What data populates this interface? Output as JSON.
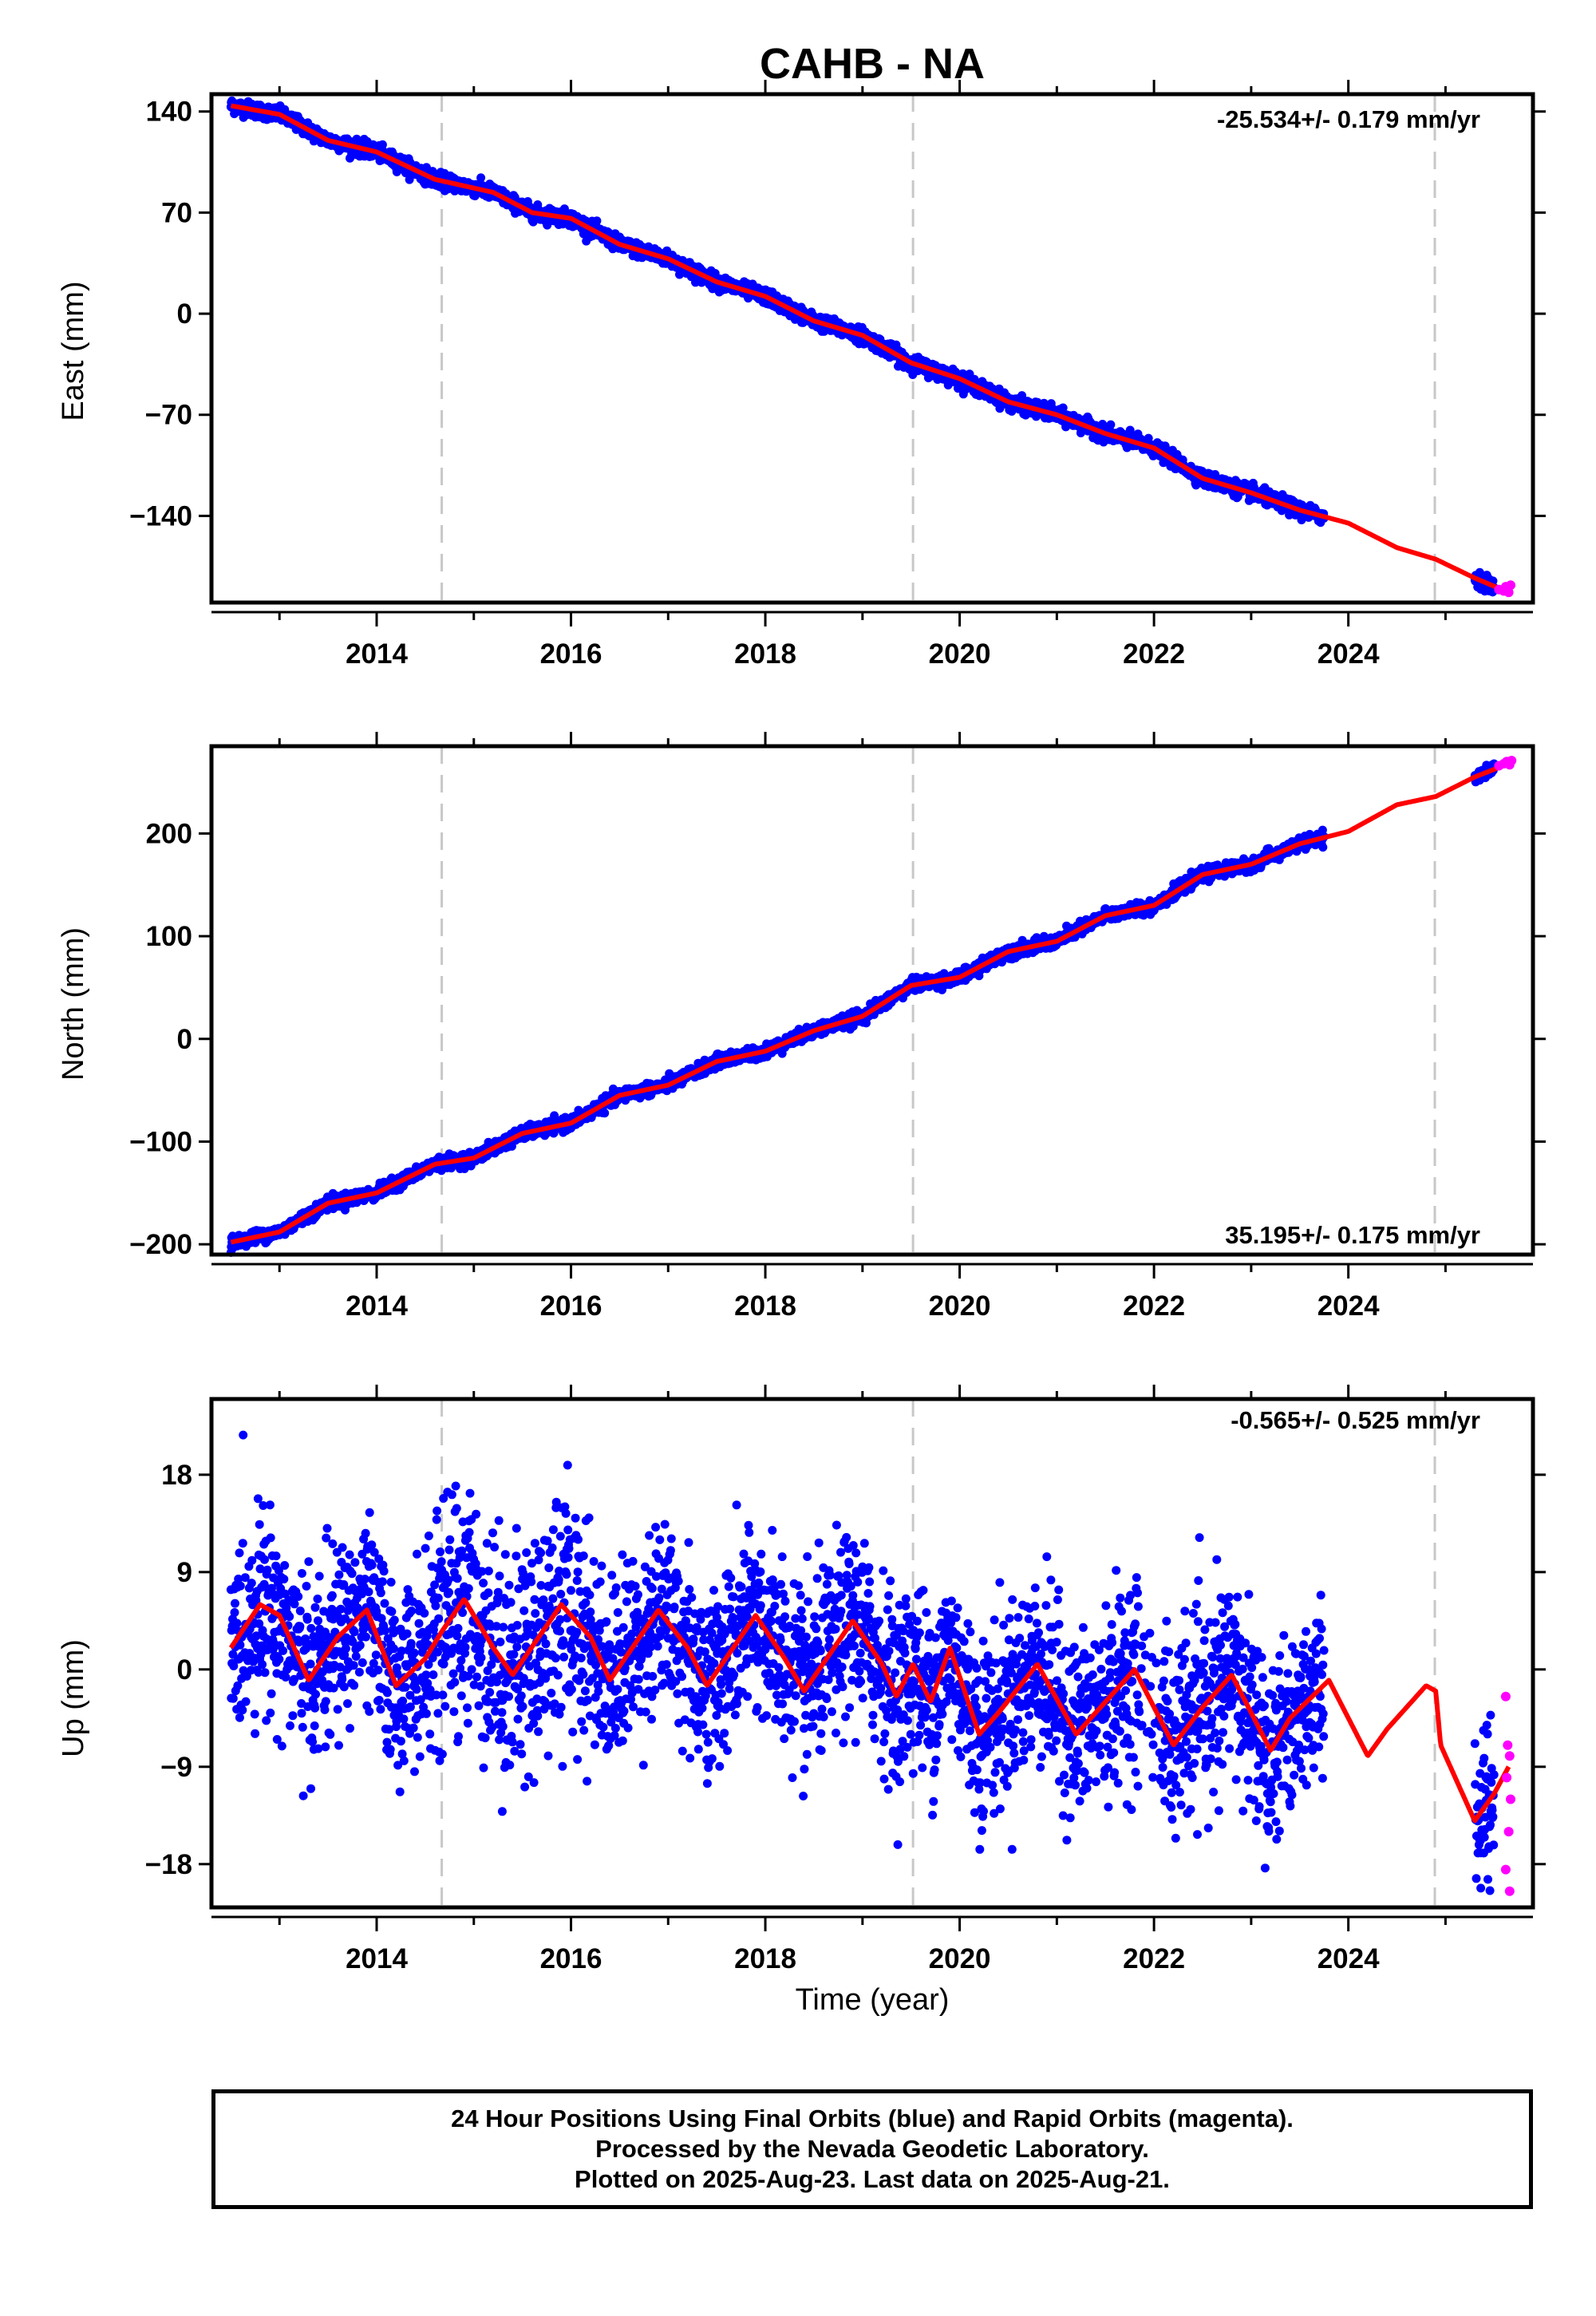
{
  "title": "CAHB - NA",
  "caption": {
    "line1": "24 Hour Positions Using Final Orbits (blue) and Rapid Orbits (magenta).",
    "line2": "Processed by the Nevada Geodetic Laboratory.",
    "line3": "Plotted on 2025-Aug-23. Last data on 2025-Aug-21."
  },
  "colors": {
    "final_orbits": "#0000ff",
    "rapid_orbits": "#ff00ff",
    "model": "#ff0000",
    "event_line": "#c8c8c8",
    "frame": "#000000"
  },
  "chart_data": [
    {
      "type": "scatter",
      "ylabel": "East (mm)",
      "xlabel": "",
      "rate": "-25.534+/- 0.179 mm/yr",
      "xlim": [
        2012.3,
        2025.9
      ],
      "ylim": [
        -200,
        152
      ],
      "yticks": [
        140,
        70,
        0,
        -70,
        -140
      ],
      "xticks": [
        2014,
        2016,
        2018,
        2020,
        2022,
        2024
      ],
      "event_lines": [
        2014.67,
        2019.52,
        2024.89
      ],
      "legend": "top-right",
      "trend": [
        [
          2012.5,
          144
        ],
        [
          2013,
          138
        ],
        [
          2013.5,
          120
        ],
        [
          2014,
          112
        ],
        [
          2014.6,
          93
        ],
        [
          2015.2,
          84
        ],
        [
          2015.6,
          70
        ],
        [
          2016,
          66
        ],
        [
          2016.5,
          48
        ],
        [
          2017,
          38
        ],
        [
          2017.5,
          22
        ],
        [
          2018,
          12
        ],
        [
          2018.5,
          -5
        ],
        [
          2019,
          -15
        ],
        [
          2019.5,
          -34
        ],
        [
          2020,
          -45
        ],
        [
          2020.5,
          -61
        ],
        [
          2021,
          -70
        ],
        [
          2021.5,
          -83
        ],
        [
          2022,
          -93
        ],
        [
          2022.5,
          -114
        ],
        [
          2023,
          -124
        ],
        [
          2023.5,
          -136
        ],
        [
          2024,
          -145
        ],
        [
          2024.5,
          -162
        ],
        [
          2024.9,
          -170
        ],
        [
          2025.3,
          -183
        ],
        [
          2025.65,
          -193
        ]
      ],
      "gap": [
        2023.75,
        2025.3
      ],
      "rapid_points": [
        [
          2025.55,
          -191
        ],
        [
          2025.6,
          -192
        ],
        [
          2025.62,
          -189
        ],
        [
          2025.65,
          -193
        ],
        [
          2025.67,
          -188
        ]
      ],
      "noise": 2.5
    },
    {
      "type": "scatter",
      "ylabel": "North (mm)",
      "xlabel": "",
      "rate": "35.195+/- 0.175 mm/yr",
      "xlim": [
        2012.3,
        2025.9
      ],
      "ylim": [
        -210,
        285
      ],
      "yticks": [
        200,
        100,
        0,
        -100,
        -200
      ],
      "xticks": [
        2014,
        2016,
        2018,
        2020,
        2022,
        2024
      ],
      "event_lines": [
        2014.67,
        2019.52,
        2024.89
      ],
      "legend": "bottom-right",
      "trend": [
        [
          2012.5,
          -198
        ],
        [
          2013,
          -188
        ],
        [
          2013.5,
          -160
        ],
        [
          2014,
          -150
        ],
        [
          2014.6,
          -122
        ],
        [
          2015,
          -116
        ],
        [
          2015.5,
          -92
        ],
        [
          2016,
          -82
        ],
        [
          2016.5,
          -55
        ],
        [
          2017,
          -45
        ],
        [
          2017.5,
          -22
        ],
        [
          2018,
          -12
        ],
        [
          2018.5,
          8
        ],
        [
          2019,
          22
        ],
        [
          2019.5,
          52
        ],
        [
          2020,
          60
        ],
        [
          2020.5,
          85
        ],
        [
          2021,
          95
        ],
        [
          2021.5,
          120
        ],
        [
          2022,
          130
        ],
        [
          2022.5,
          160
        ],
        [
          2023,
          170
        ],
        [
          2023.5,
          190
        ],
        [
          2024,
          202
        ],
        [
          2024.5,
          228
        ],
        [
          2024.9,
          236
        ],
        [
          2025.3,
          255
        ],
        [
          2025.65,
          268
        ]
      ],
      "gap": [
        2023.75,
        2025.3
      ],
      "rapid_points": [
        [
          2025.55,
          266
        ],
        [
          2025.6,
          268
        ],
        [
          2025.63,
          270
        ],
        [
          2025.66,
          267
        ],
        [
          2025.68,
          271
        ]
      ],
      "noise": 3
    },
    {
      "type": "scatter",
      "ylabel": "Up (mm)",
      "xlabel": "Time (year)",
      "rate": "-0.565+/- 0.525 mm/yr",
      "xlim": [
        2012.3,
        2025.9
      ],
      "ylim": [
        -22,
        25
      ],
      "yticks": [
        18,
        9,
        0,
        -9,
        -18
      ],
      "xticks": [
        2014,
        2016,
        2018,
        2020,
        2022,
        2024
      ],
      "event_lines": [
        2014.67,
        2019.52,
        2024.89
      ],
      "legend": "top-right",
      "trend": [
        [
          2012.5,
          2
        ],
        [
          2012.8,
          6
        ],
        [
          2013,
          5
        ],
        [
          2013.3,
          -1
        ],
        [
          2013.6,
          3
        ],
        [
          2013.9,
          5.5
        ],
        [
          2014.2,
          -1.5
        ],
        [
          2014.5,
          1
        ],
        [
          2014.67,
          3.5
        ],
        [
          2014.9,
          6.5
        ],
        [
          2015.2,
          2
        ],
        [
          2015.4,
          -0.5
        ],
        [
          2015.9,
          6
        ],
        [
          2016.2,
          3
        ],
        [
          2016.4,
          -1
        ],
        [
          2016.9,
          5.5
        ],
        [
          2017.2,
          2
        ],
        [
          2017.4,
          -1.5
        ],
        [
          2017.9,
          5
        ],
        [
          2018.2,
          1
        ],
        [
          2018.4,
          -2
        ],
        [
          2018.9,
          4.5
        ],
        [
          2019.2,
          0.5
        ],
        [
          2019.35,
          -2.5
        ],
        [
          2019.52,
          0.5
        ],
        [
          2019.7,
          -3
        ],
        [
          2019.9,
          2
        ],
        [
          2020.2,
          -6
        ],
        [
          2020.4,
          -4
        ],
        [
          2020.8,
          0.5
        ],
        [
          2021.2,
          -6
        ],
        [
          2021.5,
          -3
        ],
        [
          2021.8,
          0
        ],
        [
          2022.2,
          -7
        ],
        [
          2022.5,
          -3.5
        ],
        [
          2022.8,
          -0.5
        ],
        [
          2023.2,
          -7.5
        ],
        [
          2023.4,
          -4.5
        ],
        [
          2023.8,
          -1
        ],
        [
          2024.2,
          -8
        ],
        [
          2024.4,
          -5.5
        ],
        [
          2024.8,
          -1.5
        ],
        [
          2024.9,
          -2
        ],
        [
          2024.95,
          -7
        ],
        [
          2025.3,
          -14
        ],
        [
          2025.5,
          -11.5
        ],
        [
          2025.65,
          -9
        ]
      ],
      "gap": [
        2023.75,
        2025.3
      ],
      "rapid_points": [
        [
          2025.62,
          -2.5
        ],
        [
          2025.64,
          -7
        ],
        [
          2025.66,
          -8
        ],
        [
          2025.63,
          -10
        ],
        [
          2025.67,
          -12
        ],
        [
          2025.65,
          -15
        ],
        [
          2025.62,
          -18.5
        ],
        [
          2025.66,
          -20.5
        ]
      ],
      "noise": 4.2
    }
  ]
}
